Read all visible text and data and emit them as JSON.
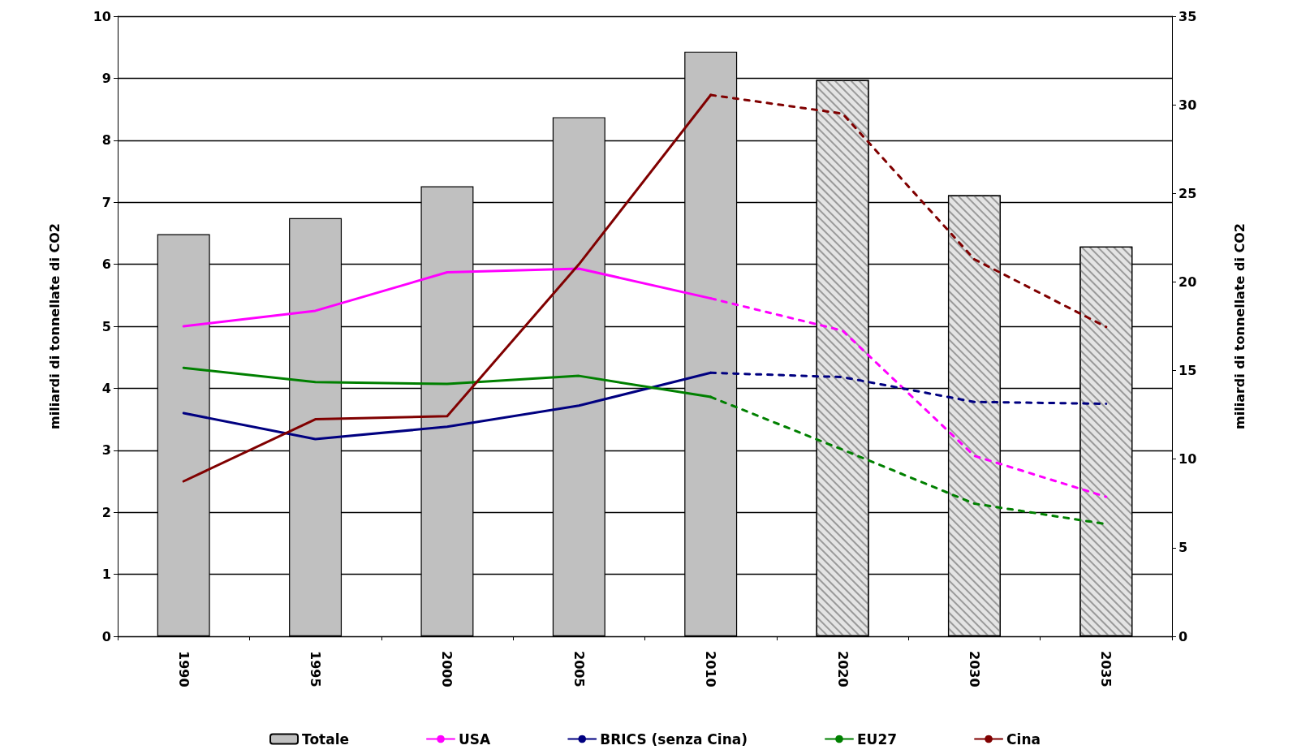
{
  "chart_data": {
    "type": "line",
    "categories": [
      "1990",
      "1995",
      "2000",
      "2005",
      "2010",
      "2020",
      "2030",
      "2035"
    ],
    "ylabel": "miliardi di tonnellate di CO2",
    "y2label": "miliardi di tonnellate di CO2",
    "ylim": [
      0,
      10
    ],
    "yticks": [
      0,
      1,
      2,
      3,
      4,
      5,
      6,
      7,
      8,
      9,
      10
    ],
    "y2lim": [
      0,
      35
    ],
    "y2ticks": [
      0,
      5,
      10,
      15,
      20,
      25,
      30,
      35
    ],
    "grid": "y",
    "legend": "bottom",
    "marker": "none",
    "series": [
      {
        "name": "Totale",
        "type": "bar",
        "axis": "y2",
        "color": "#c0c0c0",
        "colors": [
          "#c0c0c0",
          "#c0c0c0",
          "#c0c0c0",
          "#c0c0c0",
          "#c0c0c0",
          "#e4e4e4",
          "#e4e4e4",
          "#e4e4e4"
        ],
        "values": [
          22.7,
          23.6,
          25.4,
          29.3,
          33.0,
          31.4,
          24.9,
          22.0
        ]
      },
      {
        "name": "USA",
        "color": "#ff00ff",
        "line_style": "solid",
        "values": [
          5.0,
          5.25,
          5.87,
          5.93,
          5.45,
          null,
          null,
          null
        ]
      },
      {
        "name": "BRICS (senza Cina)",
        "color": "#000080",
        "line_style": "solid",
        "values": [
          3.6,
          3.18,
          3.38,
          3.72,
          4.25,
          null,
          null,
          null
        ]
      },
      {
        "name": "EU27",
        "color": "#008000",
        "line_style": "solid",
        "values": [
          4.33,
          4.1,
          4.07,
          4.2,
          3.86,
          null,
          null,
          null
        ]
      },
      {
        "name": "Cina",
        "color": "#800000",
        "line_style": "solid",
        "values": [
          2.5,
          3.5,
          3.55,
          6.0,
          8.73,
          null,
          null,
          null
        ]
      },
      {
        "color": "#ff00ff",
        "line_style": "dashed",
        "values": [
          null,
          null,
          null,
          null,
          5.45,
          4.93,
          2.91,
          2.25
        ]
      },
      {
        "color": "#000080",
        "line_style": "dashed",
        "values": [
          null,
          null,
          null,
          null,
          4.25,
          4.18,
          3.78,
          3.75
        ]
      },
      {
        "color": "#008000",
        "line_style": "dashed",
        "values": [
          null,
          null,
          null,
          null,
          3.86,
          3.01,
          2.14,
          1.81
        ]
      },
      {
        "color": "#800000",
        "line_style": "dashed",
        "values": [
          null,
          null,
          null,
          null,
          8.73,
          8.43,
          6.08,
          4.99
        ]
      }
    ]
  }
}
